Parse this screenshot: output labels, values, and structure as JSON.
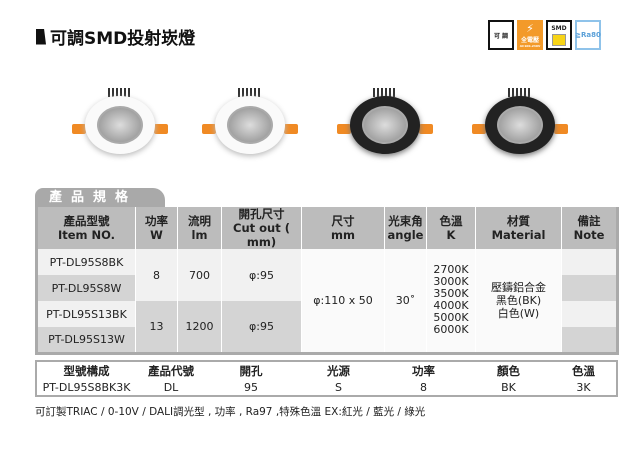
{
  "title": "可調SMD投射崁燈",
  "badges": {
    "dimmable": "可 調",
    "voltage": "全電壓",
    "voltage_sub": "AC100-240V",
    "smd": "SMD",
    "ra": "≧Ra80"
  },
  "section_tab": "產品規格",
  "spec_headers": [
    {
      "zh": "產品型號",
      "en": "Item NO."
    },
    {
      "zh": "功率",
      "en": "W"
    },
    {
      "zh": "流明",
      "en": "lm"
    },
    {
      "zh": "開孔尺寸",
      "en": "Cut out ( mm)"
    },
    {
      "zh": "尺寸",
      "en": "mm"
    },
    {
      "zh": "光束角",
      "en": "angle"
    },
    {
      "zh": "色溫",
      "en": "K"
    },
    {
      "zh": "材質",
      "en": "Material"
    },
    {
      "zh": "備註",
      "en": "Note"
    }
  ],
  "models": [
    "PT-DL95S8BK",
    "PT-DL95S8W",
    "PT-DL95S13BK",
    "PT-DL95S13W"
  ],
  "groups": [
    {
      "w": "8",
      "lm": "700",
      "cutout": "φ:95"
    },
    {
      "w": "13",
      "lm": "1200",
      "cutout": "φ:95"
    }
  ],
  "size": "φ:110 x 50",
  "angle": "30˚",
  "cct": [
    "2700K",
    "3000K",
    "3500K",
    "4000K",
    "5000K",
    "6000K"
  ],
  "material": [
    "壓鑄鋁合金",
    "黑色(BK)",
    "白色(W)"
  ],
  "code_table": {
    "headers": [
      "型號構成",
      "產品代號",
      "開孔",
      "光源",
      "功率",
      "顏色",
      "色溫"
    ],
    "values": [
      "PT-DL95S8BK3K",
      "DL",
      "95",
      "S",
      "8",
      "BK",
      "3K"
    ]
  },
  "note": "可訂製TRIAC / 0-10V / DALI調光型 , 功率 , Ra97 ,特殊色溫 EX:紅光 / 藍光 / 綠光",
  "colors": {
    "accent_orange": "#f39a2a",
    "header_gray": "#bcbcbc"
  }
}
